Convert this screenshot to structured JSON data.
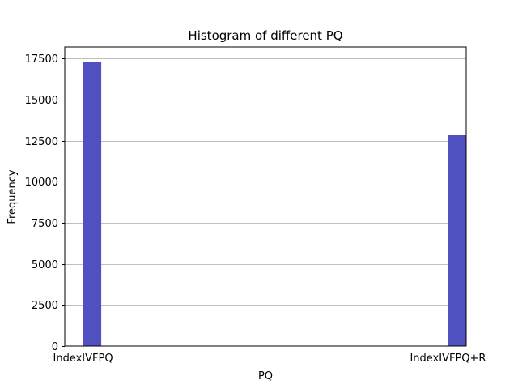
{
  "chart_data": {
    "type": "bar",
    "title": "Histogram of different PQ",
    "xlabel": "PQ",
    "ylabel": "Frequency",
    "categories": [
      "IndexIVFPQ",
      "IndexIVFPQ+R"
    ],
    "values": [
      17300,
      12850
    ],
    "xlim": [
      -0.05,
      1.05
    ],
    "ylim": [
      0,
      18200
    ],
    "yticks": [
      0,
      2500,
      5000,
      7500,
      10000,
      12500,
      15000,
      17500
    ],
    "ytick_labels": [
      "0",
      "2500",
      "5000",
      "7500",
      "10000",
      "12500",
      "15000",
      "17500"
    ],
    "bin_width": 0.05,
    "bar_color": "#5050c0",
    "grid": "y-only",
    "grid_color": "#c0c0c0"
  }
}
